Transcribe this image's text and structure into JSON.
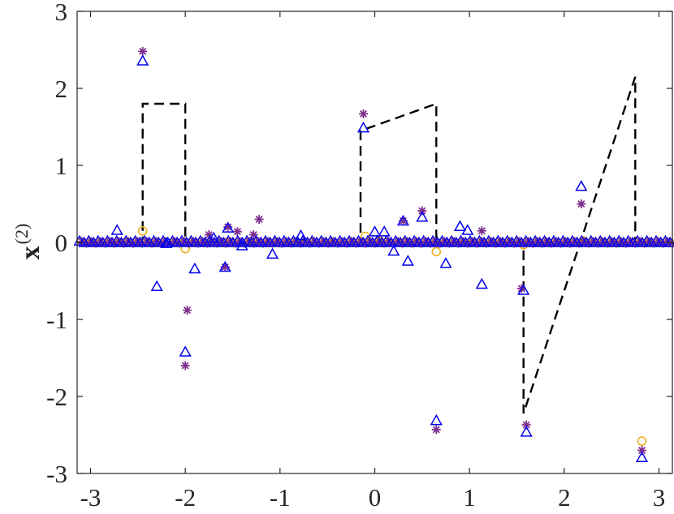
{
  "chart_data": {
    "type": "scatter",
    "ylabel": "x",
    "ylabel_superscript": "(2)",
    "xlim": [
      -3.1416,
      3.1416
    ],
    "ylim": [
      -3,
      3
    ],
    "xticks": [
      -3,
      -2,
      -1,
      0,
      1,
      2,
      3
    ],
    "xtick_labels": [
      "-3",
      "-2",
      "-1",
      "0",
      "1",
      "2",
      "3"
    ],
    "yticks": [
      -3,
      -2,
      -1,
      0,
      1,
      2,
      3
    ],
    "ytick_labels": [
      "-3",
      "-2",
      "-1",
      "0",
      "1",
      "2",
      "3"
    ],
    "grid": false,
    "colors": {
      "truth": "#000000",
      "triangle": "#0000ee",
      "star": "#7e2f8e",
      "circle": "#edb120",
      "axes": "#262626"
    },
    "series": [
      {
        "style": "dashed-line",
        "x": [
          -3.1416,
          -2.45,
          -2.45,
          -2.0,
          -2.0,
          -0.15,
          -0.15,
          0.65,
          0.65,
          1.57,
          1.57,
          2.75,
          2.75,
          3.1416
        ],
        "y": [
          0,
          0,
          1.8,
          1.8,
          0,
          0,
          1.45,
          1.8,
          0,
          0,
          -2.22,
          2.15,
          0,
          0
        ]
      },
      {
        "style": "circle",
        "x": [
          -2.45,
          -2.0,
          -1.58,
          -1.25,
          -0.1,
          0.05,
          0.3,
          0.65,
          1.57,
          2.2,
          2.82
        ],
        "y": [
          0.15,
          -0.08,
          0.0,
          0.0,
          0.08,
          0.02,
          0.0,
          -0.12,
          -0.03,
          0.02,
          -2.58
        ]
      },
      {
        "style": "triangle",
        "x": [
          -2.72,
          -2.45,
          -2.3,
          -2.2,
          -2.0,
          -1.9,
          -1.7,
          -1.58,
          -1.55,
          -1.4,
          -1.08,
          -0.78,
          -0.12,
          0.0,
          0.1,
          0.2,
          0.3,
          0.35,
          0.5,
          0.65,
          0.75,
          0.9,
          0.98,
          1.13,
          1.57,
          1.6,
          2.18,
          2.82
        ],
        "y": [
          0.15,
          2.35,
          -0.58,
          -0.02,
          -1.43,
          -0.35,
          0.05,
          -0.33,
          0.18,
          -0.05,
          -0.16,
          0.08,
          1.48,
          0.13,
          0.13,
          -0.12,
          0.27,
          -0.25,
          0.32,
          -2.32,
          -0.28,
          0.2,
          0.15,
          -0.55,
          -0.63,
          -2.47,
          0.72,
          -2.8
        ]
      },
      {
        "style": "star",
        "x": [
          -2.45,
          -2.0,
          -1.98,
          -1.75,
          -1.58,
          -1.55,
          -1.45,
          -1.28,
          -1.22,
          -0.12,
          0.3,
          0.5,
          0.65,
          1.13,
          1.55,
          1.6,
          2.18,
          2.82
        ],
        "y": [
          2.48,
          -1.6,
          -0.88,
          0.1,
          -0.32,
          0.2,
          0.14,
          0.1,
          0.3,
          1.67,
          0.28,
          0.41,
          -2.43,
          0.15,
          -0.6,
          -2.37,
          0.5,
          -2.7
        ]
      }
    ]
  }
}
